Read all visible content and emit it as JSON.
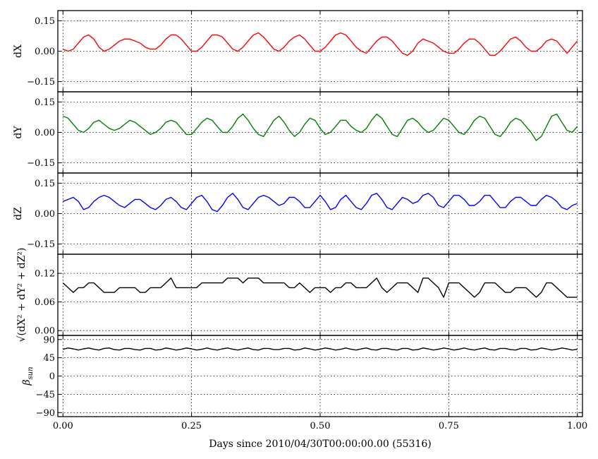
{
  "chart_data": [
    {
      "type": "line",
      "ylabel": "dX",
      "ylim": [
        -0.2,
        0.2
      ],
      "yticks": [
        "0.15",
        "0.00",
        "−0.15"
      ],
      "ytick_values": [
        0.15,
        0.0,
        -0.15
      ],
      "xlim": [
        -0.01,
        1.01
      ],
      "grid": true,
      "color": "#ff0000",
      "x": [
        0.0,
        0.01,
        0.02,
        0.03,
        0.04,
        0.05,
        0.06,
        0.07,
        0.08,
        0.09,
        0.1,
        0.11,
        0.12,
        0.13,
        0.14,
        0.15,
        0.16,
        0.17,
        0.18,
        0.19,
        0.2,
        0.21,
        0.22,
        0.23,
        0.24,
        0.25,
        0.26,
        0.27,
        0.28,
        0.29,
        0.3,
        0.31,
        0.32,
        0.33,
        0.34,
        0.35,
        0.36,
        0.37,
        0.38,
        0.39,
        0.4,
        0.41,
        0.42,
        0.43,
        0.44,
        0.45,
        0.46,
        0.47,
        0.48,
        0.49,
        0.5,
        0.51,
        0.52,
        0.53,
        0.54,
        0.55,
        0.56,
        0.57,
        0.58,
        0.59,
        0.6,
        0.61,
        0.62,
        0.63,
        0.64,
        0.65,
        0.66,
        0.67,
        0.68,
        0.69,
        0.7,
        0.71,
        0.72,
        0.73,
        0.74,
        0.75,
        0.76,
        0.77,
        0.78,
        0.79,
        0.8,
        0.81,
        0.82,
        0.83,
        0.84,
        0.85,
        0.86,
        0.87,
        0.88,
        0.89,
        0.9,
        0.91,
        0.92,
        0.93,
        0.94,
        0.95,
        0.96,
        0.97,
        0.98,
        0.99,
        1.0
      ],
      "y": [
        0.01,
        0.0,
        0.01,
        0.04,
        0.07,
        0.08,
        0.06,
        0.02,
        0.0,
        0.01,
        0.03,
        0.05,
        0.06,
        0.06,
        0.05,
        0.04,
        0.02,
        0.01,
        0.01,
        0.03,
        0.06,
        0.08,
        0.08,
        0.06,
        0.03,
        0.0,
        0.0,
        0.02,
        0.05,
        0.08,
        0.08,
        0.07,
        0.04,
        0.01,
        0.0,
        0.02,
        0.05,
        0.08,
        0.09,
        0.07,
        0.04,
        0.01,
        0.0,
        0.02,
        0.05,
        0.07,
        0.08,
        0.06,
        0.03,
        0.0,
        0.0,
        0.02,
        0.05,
        0.08,
        0.09,
        0.08,
        0.05,
        0.02,
        0.0,
        -0.01,
        0.02,
        0.05,
        0.07,
        0.07,
        0.05,
        0.02,
        -0.01,
        -0.02,
        0.0,
        0.04,
        0.06,
        0.05,
        0.04,
        0.02,
        0.0,
        -0.01,
        -0.01,
        0.01,
        0.04,
        0.06,
        0.06,
        0.04,
        0.01,
        -0.02,
        -0.02,
        0.0,
        0.03,
        0.06,
        0.07,
        0.05,
        0.02,
        0.0,
        0.0,
        0.02,
        0.05,
        0.06,
        0.05,
        0.02,
        -0.01,
        0.02,
        0.05
      ]
    },
    {
      "type": "line",
      "ylabel": "dY",
      "ylim": [
        -0.2,
        0.2
      ],
      "yticks": [
        "0.15",
        "0.00",
        "−0.15"
      ],
      "ytick_values": [
        0.15,
        0.0,
        -0.15
      ],
      "xlim": [
        -0.01,
        1.01
      ],
      "grid": true,
      "color": "#008000",
      "x": [
        0.0,
        0.01,
        0.02,
        0.03,
        0.04,
        0.05,
        0.06,
        0.07,
        0.08,
        0.09,
        0.1,
        0.11,
        0.12,
        0.13,
        0.14,
        0.15,
        0.16,
        0.17,
        0.18,
        0.19,
        0.2,
        0.21,
        0.22,
        0.23,
        0.24,
        0.25,
        0.26,
        0.27,
        0.28,
        0.29,
        0.3,
        0.31,
        0.32,
        0.33,
        0.34,
        0.35,
        0.36,
        0.37,
        0.38,
        0.39,
        0.4,
        0.41,
        0.42,
        0.43,
        0.44,
        0.45,
        0.46,
        0.47,
        0.48,
        0.49,
        0.5,
        0.51,
        0.52,
        0.53,
        0.54,
        0.55,
        0.56,
        0.57,
        0.58,
        0.59,
        0.6,
        0.61,
        0.62,
        0.63,
        0.64,
        0.65,
        0.66,
        0.67,
        0.68,
        0.69,
        0.7,
        0.71,
        0.72,
        0.73,
        0.74,
        0.75,
        0.76,
        0.77,
        0.78,
        0.79,
        0.8,
        0.81,
        0.82,
        0.83,
        0.84,
        0.85,
        0.86,
        0.87,
        0.88,
        0.89,
        0.9,
        0.91,
        0.92,
        0.93,
        0.94,
        0.95,
        0.96,
        0.97,
        0.98,
        0.99,
        1.0
      ],
      "y": [
        0.08,
        0.07,
        0.04,
        0.01,
        0.0,
        0.02,
        0.05,
        0.06,
        0.04,
        0.02,
        0.01,
        0.02,
        0.04,
        0.06,
        0.05,
        0.03,
        0.01,
        -0.01,
        0.0,
        0.02,
        0.05,
        0.06,
        0.05,
        0.02,
        -0.01,
        -0.01,
        0.02,
        0.05,
        0.07,
        0.06,
        0.03,
        0.0,
        0.0,
        0.03,
        0.07,
        0.09,
        0.06,
        0.02,
        -0.01,
        -0.02,
        0.02,
        0.06,
        0.08,
        0.05,
        0.01,
        -0.02,
        0.0,
        0.04,
        0.07,
        0.06,
        0.02,
        -0.01,
        0.0,
        0.03,
        0.06,
        0.06,
        0.03,
        0.01,
        0.0,
        0.02,
        0.06,
        0.09,
        0.07,
        0.03,
        -0.01,
        -0.02,
        0.02,
        0.06,
        0.07,
        0.05,
        0.02,
        0.0,
        0.01,
        0.04,
        0.07,
        0.06,
        0.03,
        0.0,
        -0.01,
        0.02,
        0.06,
        0.08,
        0.07,
        0.03,
        -0.01,
        -0.02,
        0.01,
        0.05,
        0.07,
        0.06,
        0.03,
        0.0,
        -0.04,
        -0.02,
        0.03,
        0.08,
        0.09,
        0.05,
        0.01,
        0.0,
        0.03
      ]
    },
    {
      "type": "line",
      "ylabel": "dZ",
      "ylim": [
        -0.2,
        0.2
      ],
      "yticks": [
        "0.15",
        "0.00",
        "−0.15"
      ],
      "ytick_values": [
        0.15,
        0.0,
        -0.15
      ],
      "xlim": [
        -0.01,
        1.01
      ],
      "grid": true,
      "color": "#0000ff",
      "x": [
        0.0,
        0.01,
        0.02,
        0.03,
        0.04,
        0.05,
        0.06,
        0.07,
        0.08,
        0.09,
        0.1,
        0.11,
        0.12,
        0.13,
        0.14,
        0.15,
        0.16,
        0.17,
        0.18,
        0.19,
        0.2,
        0.21,
        0.22,
        0.23,
        0.24,
        0.25,
        0.26,
        0.27,
        0.28,
        0.29,
        0.3,
        0.31,
        0.32,
        0.33,
        0.34,
        0.35,
        0.36,
        0.37,
        0.38,
        0.39,
        0.4,
        0.41,
        0.42,
        0.43,
        0.44,
        0.45,
        0.46,
        0.47,
        0.48,
        0.49,
        0.5,
        0.51,
        0.52,
        0.53,
        0.54,
        0.55,
        0.56,
        0.57,
        0.58,
        0.59,
        0.6,
        0.61,
        0.62,
        0.63,
        0.64,
        0.65,
        0.66,
        0.67,
        0.68,
        0.69,
        0.7,
        0.71,
        0.72,
        0.73,
        0.74,
        0.75,
        0.76,
        0.77,
        0.78,
        0.79,
        0.8,
        0.81,
        0.82,
        0.83,
        0.84,
        0.85,
        0.86,
        0.87,
        0.88,
        0.89,
        0.9,
        0.91,
        0.92,
        0.93,
        0.94,
        0.95,
        0.96,
        0.97,
        0.98,
        0.99,
        1.0
      ],
      "y": [
        0.06,
        0.07,
        0.08,
        0.06,
        0.02,
        0.03,
        0.06,
        0.08,
        0.09,
        0.08,
        0.06,
        0.04,
        0.03,
        0.05,
        0.07,
        0.07,
        0.05,
        0.03,
        0.02,
        0.04,
        0.07,
        0.08,
        0.06,
        0.03,
        0.02,
        0.05,
        0.08,
        0.09,
        0.06,
        0.02,
        0.01,
        0.04,
        0.08,
        0.1,
        0.07,
        0.03,
        0.02,
        0.05,
        0.08,
        0.09,
        0.08,
        0.06,
        0.04,
        0.05,
        0.08,
        0.08,
        0.06,
        0.03,
        0.03,
        0.06,
        0.09,
        0.06,
        0.02,
        0.03,
        0.07,
        0.09,
        0.06,
        0.03,
        0.02,
        0.05,
        0.09,
        0.1,
        0.07,
        0.03,
        0.02,
        0.05,
        0.08,
        0.07,
        0.05,
        0.06,
        0.09,
        0.1,
        0.08,
        0.04,
        0.03,
        0.06,
        0.09,
        0.09,
        0.07,
        0.04,
        0.04,
        0.06,
        0.09,
        0.09,
        0.06,
        0.03,
        0.03,
        0.06,
        0.08,
        0.08,
        0.06,
        0.04,
        0.04,
        0.07,
        0.09,
        0.08,
        0.06,
        0.03,
        0.02,
        0.04,
        0.05
      ]
    },
    {
      "type": "line",
      "ylabel": "√(dX² + dY² + dZ²)",
      "ylim": [
        -0.01,
        0.16
      ],
      "yticks": [
        "0.12",
        "0.06",
        "0.00"
      ],
      "ytick_values": [
        0.12,
        0.06,
        0.0
      ],
      "xlim": [
        -0.01,
        1.01
      ],
      "grid": true,
      "color": "#000000",
      "x": [
        0.0,
        0.01,
        0.02,
        0.03,
        0.04,
        0.05,
        0.06,
        0.07,
        0.08,
        0.09,
        0.1,
        0.11,
        0.12,
        0.13,
        0.14,
        0.15,
        0.16,
        0.17,
        0.18,
        0.19,
        0.2,
        0.21,
        0.22,
        0.23,
        0.24,
        0.25,
        0.26,
        0.27,
        0.28,
        0.29,
        0.3,
        0.31,
        0.32,
        0.33,
        0.34,
        0.35,
        0.36,
        0.37,
        0.38,
        0.39,
        0.4,
        0.41,
        0.42,
        0.43,
        0.44,
        0.45,
        0.46,
        0.47,
        0.48,
        0.49,
        0.5,
        0.51,
        0.52,
        0.53,
        0.54,
        0.55,
        0.56,
        0.57,
        0.58,
        0.59,
        0.6,
        0.61,
        0.62,
        0.63,
        0.64,
        0.65,
        0.66,
        0.67,
        0.68,
        0.69,
        0.7,
        0.71,
        0.72,
        0.73,
        0.74,
        0.75,
        0.76,
        0.77,
        0.78,
        0.79,
        0.8,
        0.81,
        0.82,
        0.83,
        0.84,
        0.85,
        0.86,
        0.87,
        0.88,
        0.89,
        0.9,
        0.91,
        0.92,
        0.93,
        0.94,
        0.95,
        0.96,
        0.97,
        0.98,
        0.99,
        1.0
      ],
      "y": [
        0.1,
        0.09,
        0.08,
        0.09,
        0.09,
        0.1,
        0.1,
        0.09,
        0.08,
        0.08,
        0.08,
        0.09,
        0.09,
        0.09,
        0.09,
        0.08,
        0.08,
        0.09,
        0.09,
        0.09,
        0.1,
        0.11,
        0.09,
        0.09,
        0.09,
        0.09,
        0.09,
        0.1,
        0.1,
        0.1,
        0.1,
        0.1,
        0.11,
        0.11,
        0.11,
        0.1,
        0.11,
        0.11,
        0.11,
        0.1,
        0.1,
        0.1,
        0.1,
        0.1,
        0.09,
        0.09,
        0.1,
        0.09,
        0.08,
        0.09,
        0.09,
        0.09,
        0.08,
        0.09,
        0.09,
        0.1,
        0.1,
        0.09,
        0.09,
        0.09,
        0.1,
        0.11,
        0.09,
        0.08,
        0.09,
        0.1,
        0.1,
        0.1,
        0.09,
        0.08,
        0.11,
        0.11,
        0.1,
        0.09,
        0.07,
        0.1,
        0.1,
        0.1,
        0.09,
        0.08,
        0.07,
        0.08,
        0.1,
        0.1,
        0.1,
        0.09,
        0.08,
        0.08,
        0.09,
        0.09,
        0.09,
        0.08,
        0.07,
        0.08,
        0.1,
        0.1,
        0.09,
        0.08,
        0.07,
        0.07,
        0.07
      ]
    },
    {
      "type": "line",
      "ylabel": "β_sun",
      "ylim": [
        -100,
        100
      ],
      "yticks": [
        "90",
        "45",
        "0",
        "−45",
        "−90"
      ],
      "ytick_values": [
        90,
        45,
        0,
        -45,
        -90
      ],
      "xlim": [
        -0.01,
        1.01
      ],
      "xticks": [
        "0.00",
        "0.25",
        "0.50",
        "0.75",
        "1.00"
      ],
      "xtick_values": [
        0.0,
        0.25,
        0.5,
        0.75,
        1.0
      ],
      "xlabel": "Days since 2010/04/30T00:00:00.00 (55316)",
      "grid": true,
      "color": "#000000",
      "x": [
        0.0,
        0.01,
        0.02,
        0.03,
        0.04,
        0.05,
        0.06,
        0.07,
        0.08,
        0.09,
        0.1,
        0.11,
        0.12,
        0.13,
        0.14,
        0.15,
        0.16,
        0.17,
        0.18,
        0.19,
        0.2,
        0.21,
        0.22,
        0.23,
        0.24,
        0.25,
        0.26,
        0.27,
        0.28,
        0.29,
        0.3,
        0.31,
        0.32,
        0.33,
        0.34,
        0.35,
        0.36,
        0.37,
        0.38,
        0.39,
        0.4,
        0.41,
        0.42,
        0.43,
        0.44,
        0.45,
        0.46,
        0.47,
        0.48,
        0.49,
        0.5,
        0.51,
        0.52,
        0.53,
        0.54,
        0.55,
        0.56,
        0.57,
        0.58,
        0.59,
        0.6,
        0.61,
        0.62,
        0.63,
        0.64,
        0.65,
        0.66,
        0.67,
        0.68,
        0.69,
        0.7,
        0.71,
        0.72,
        0.73,
        0.74,
        0.75,
        0.76,
        0.77,
        0.78,
        0.79,
        0.8,
        0.81,
        0.82,
        0.83,
        0.84,
        0.85,
        0.86,
        0.87,
        0.88,
        0.89,
        0.9,
        0.91,
        0.92,
        0.93,
        0.94,
        0.95,
        0.96,
        0.97,
        0.98,
        0.99,
        1.0
      ],
      "y": [
        66.0,
        69.0,
        67.0,
        64.0,
        67.0,
        69.0,
        66.0,
        64.0,
        68.0,
        69.0,
        65.0,
        64.0,
        68.0,
        68.0,
        65.0,
        64.0,
        68.0,
        68.0,
        64.0,
        65.0,
        69.0,
        67.0,
        64.0,
        66.0,
        69.0,
        67.0,
        64.0,
        66.0,
        69.0,
        66.0,
        64.0,
        67.0,
        69.0,
        66.0,
        64.0,
        67.0,
        69.0,
        65.0,
        64.0,
        68.0,
        68.0,
        65.0,
        65.0,
        68.0,
        68.0,
        64.0,
        65.0,
        69.0,
        67.0,
        64.0,
        66.0,
        69.0,
        67.0,
        64.0,
        66.0,
        69.0,
        66.0,
        64.0,
        67.0,
        69.0,
        65.0,
        64.0,
        68.0,
        68.0,
        65.0,
        64.0,
        68.0,
        68.0,
        64.0,
        65.0,
        69.0,
        67.0,
        64.0,
        66.0,
        69.0,
        67.0,
        64.0,
        66.0,
        69.0,
        66.0,
        64.0,
        67.0,
        69.0,
        65.0,
        64.0,
        68.0,
        68.0,
        65.0,
        64.0,
        68.0,
        68.0,
        64.0,
        65.0,
        69.0,
        67.0,
        64.0,
        66.0,
        69.0,
        67.0,
        64.0,
        66.0
      ]
    }
  ]
}
